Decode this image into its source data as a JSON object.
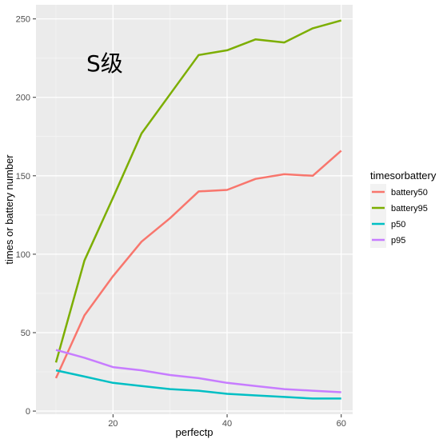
{
  "chart_data": {
    "type": "line",
    "xlabel": "perfectp",
    "ylabel": "times or battery number",
    "xlim": [
      6.5,
      62
    ],
    "ylim": [
      -2,
      259
    ],
    "x_ticks": [
      20,
      40,
      60
    ],
    "y_ticks": [
      0,
      50,
      100,
      150,
      200,
      250
    ],
    "grid": true,
    "annotation": "S级",
    "legend": {
      "title": "timesorbattery",
      "position": "right"
    },
    "series": [
      {
        "name": "battery50",
        "color": "#F8766D",
        "x": [
          10,
          15,
          20,
          25,
          30,
          35,
          40,
          45,
          50,
          55,
          60
        ],
        "y": [
          21,
          61,
          86,
          108,
          123,
          140,
          141,
          148,
          151,
          150,
          166
        ]
      },
      {
        "name": "battery95",
        "color": "#7CAE00",
        "x": [
          10,
          15,
          20,
          25,
          30,
          35,
          40,
          45,
          50,
          55,
          60
        ],
        "y": [
          31,
          96,
          136,
          177,
          202,
          227,
          230,
          237,
          235,
          244,
          249
        ]
      },
      {
        "name": "p50",
        "color": "#00BFC4",
        "x": [
          10,
          15,
          20,
          25,
          30,
          35,
          40,
          45,
          50,
          55,
          60
        ],
        "y": [
          26,
          22,
          18,
          16,
          14,
          13,
          11,
          10,
          9,
          8,
          8
        ]
      },
      {
        "name": "p95",
        "color": "#C77CFF",
        "x": [
          10,
          15,
          20,
          25,
          30,
          35,
          40,
          45,
          50,
          55,
          60
        ],
        "y": [
          39,
          34,
          28,
          26,
          23,
          21,
          18,
          16,
          14,
          13,
          12
        ]
      }
    ]
  }
}
